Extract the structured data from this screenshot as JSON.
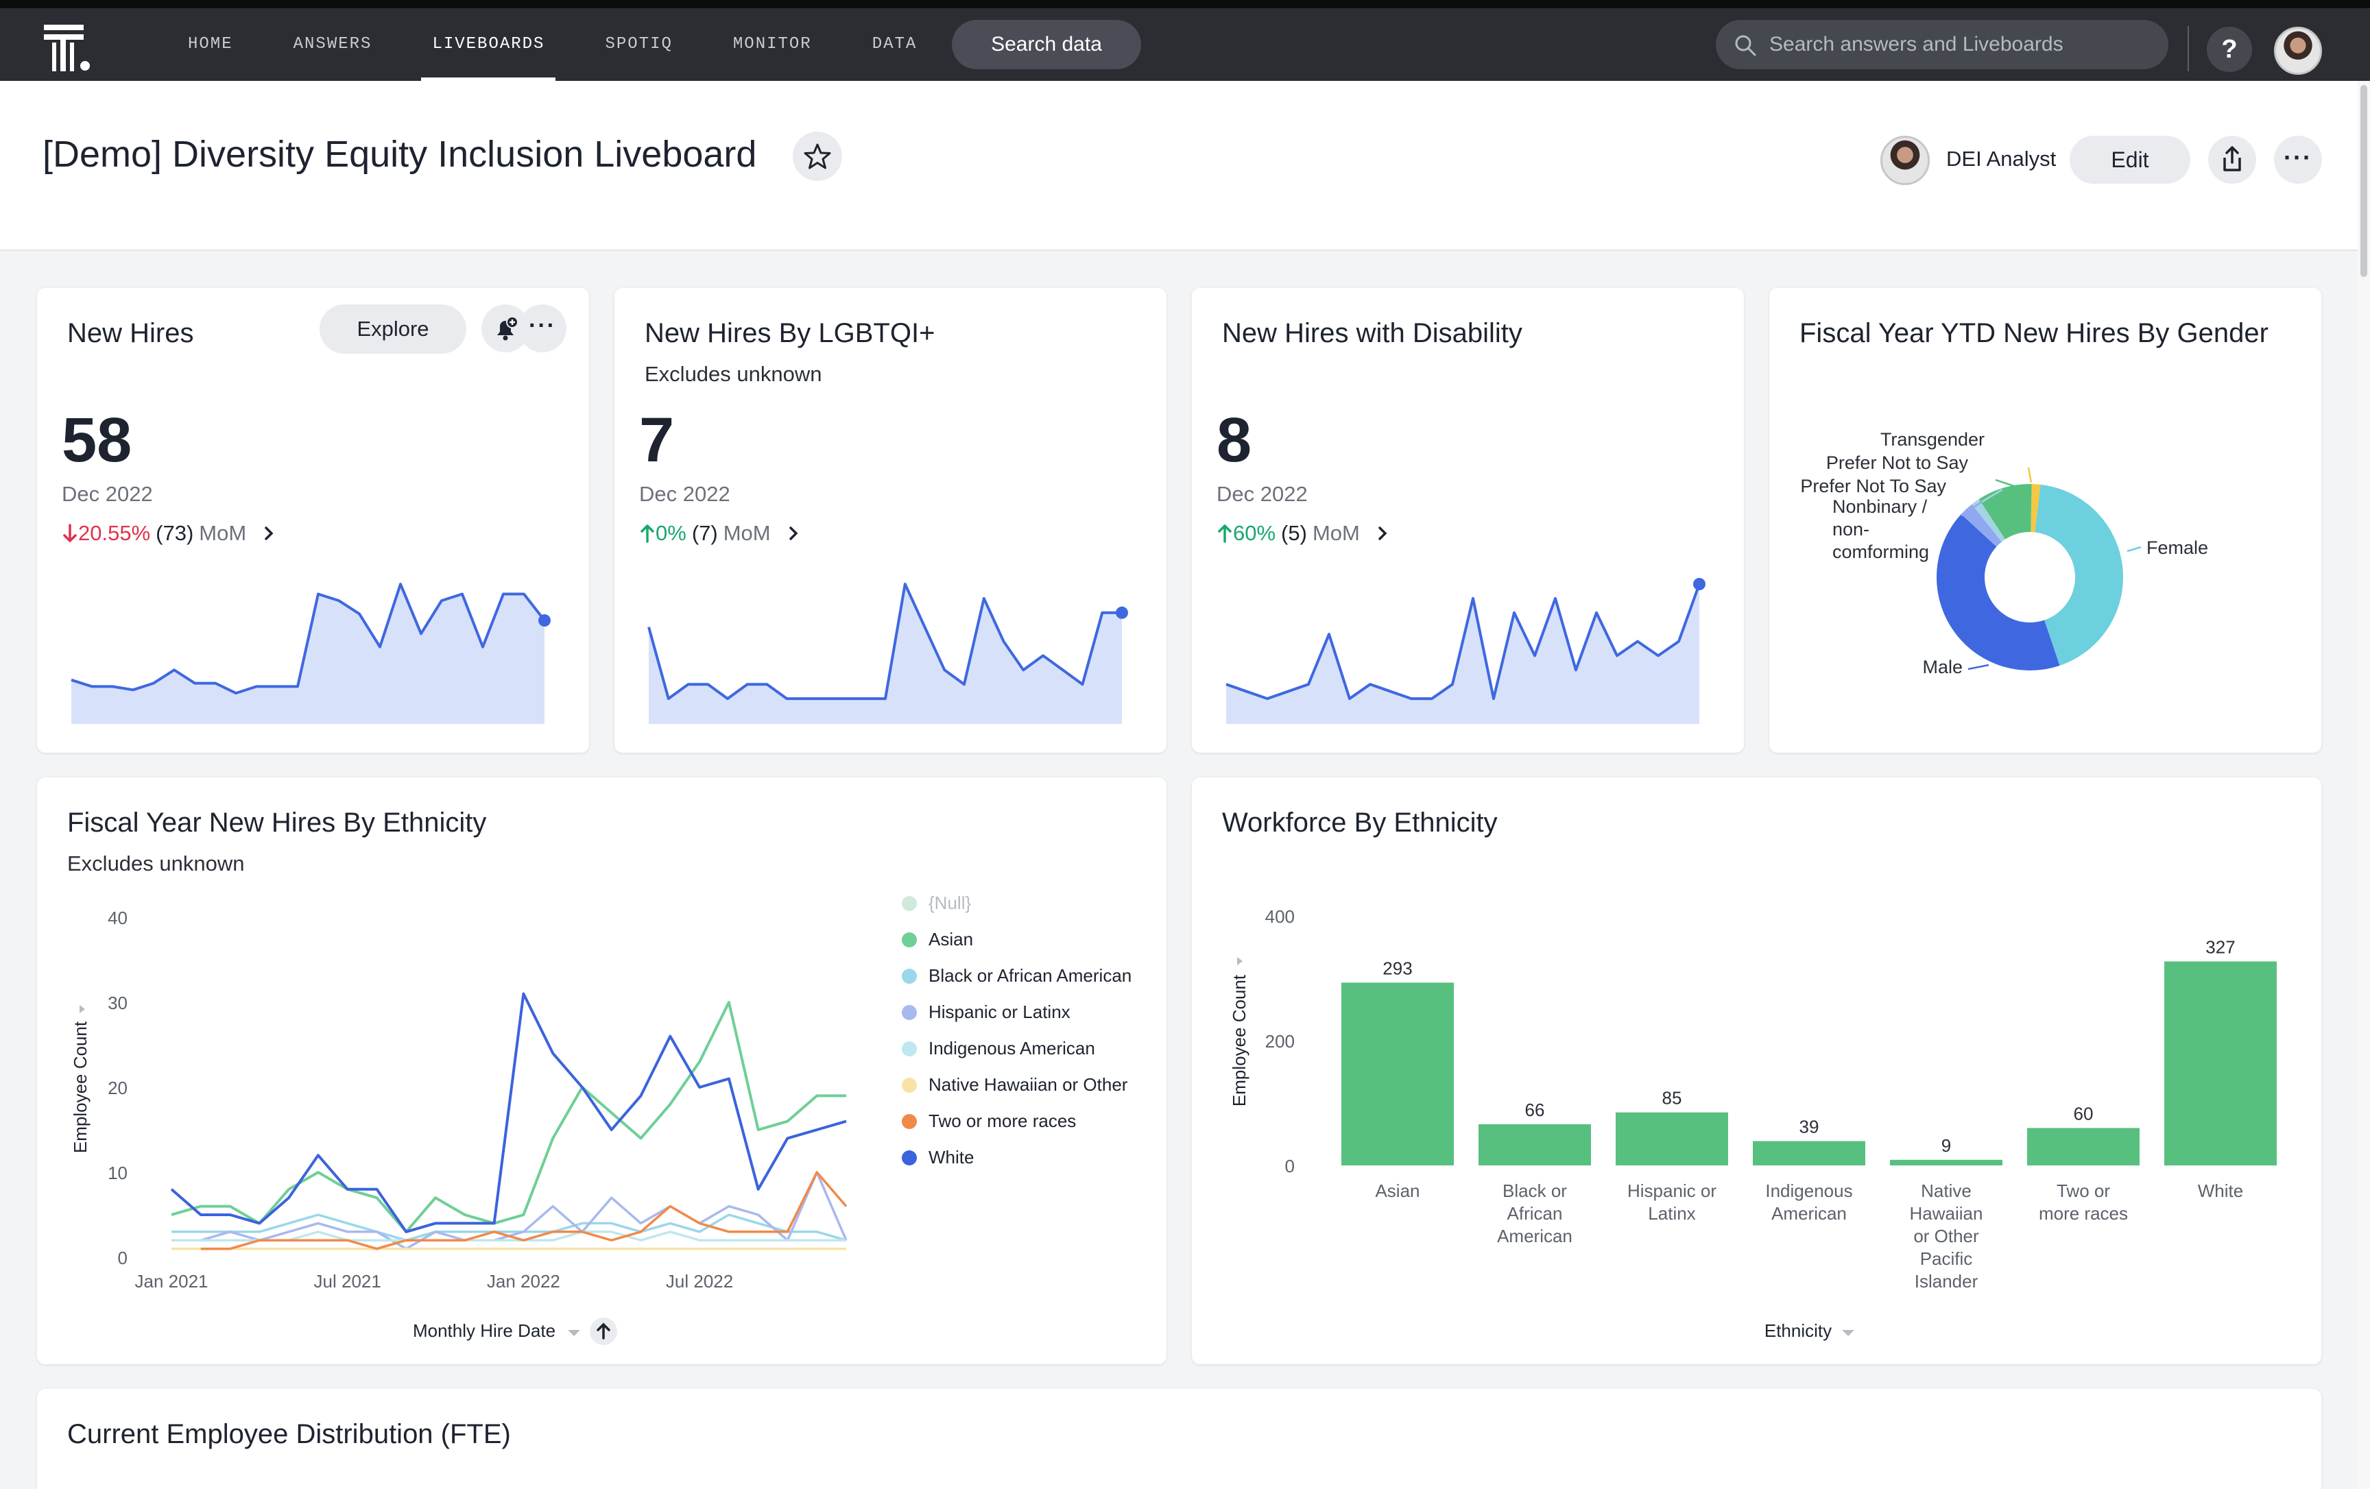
{
  "nav": {
    "items": [
      "HOME",
      "ANSWERS",
      "LIVEBOARDS",
      "SPOTIQ",
      "MONITOR",
      "DATA"
    ],
    "active": "LIVEBOARDS",
    "search_data_label": "Search data",
    "search_placeholder": "Search answers and Liveboards",
    "help_label": "?"
  },
  "header": {
    "title": "[Demo] Diversity Equity Inclusion Liveboard",
    "owner": "DEI Analyst",
    "edit_label": "Edit",
    "more_label": "···"
  },
  "kpi_cards": [
    {
      "title": "New Hires",
      "subtitle": "",
      "value": "58",
      "date": "Dec 2022",
      "change_pct": "20.55%",
      "change_abs": "(73)",
      "change_dir": "down",
      "mom_label": "MoM",
      "explore_label": "Explore",
      "more_label": "···",
      "trend": [
        10,
        8,
        8,
        7,
        9,
        13,
        9,
        9,
        6,
        8,
        8,
        8,
        36,
        34,
        30,
        20,
        39,
        24,
        34,
        36,
        20,
        36,
        36,
        28
      ]
    },
    {
      "title": "New Hires By LGBTQI+",
      "subtitle": "Excludes unknown",
      "value": "7",
      "date": "Dec 2022",
      "change_pct": "0%",
      "change_abs": "(7)",
      "change_dir": "up",
      "mom_label": "MoM",
      "trend": [
        6,
        1,
        2,
        2,
        1,
        2,
        2,
        1,
        1,
        1,
        1,
        1,
        1,
        9,
        6,
        3,
        2,
        8,
        5,
        3,
        4,
        3,
        2,
        7,
        7
      ]
    },
    {
      "title": "New Hires with Disability",
      "subtitle": "",
      "value": "8",
      "date": "Dec 2022",
      "change_pct": "60%",
      "change_abs": "(5)",
      "change_dir": "up",
      "mom_label": "MoM",
      "trend": [
        2,
        1.5,
        1,
        1.5,
        2,
        5.5,
        1,
        2,
        1.5,
        1,
        1,
        2,
        8,
        1,
        7,
        4,
        8,
        3,
        7,
        4,
        5,
        4,
        5,
        9
      ]
    }
  ],
  "gender_card": {
    "title": "Fiscal Year YTD New Hires By Gender",
    "chart_data": {
      "type": "pie",
      "labels": [
        "Female",
        "Male",
        "Nonbinary / non-comforming",
        "Prefer Not To Say",
        "Prefer Not to Say",
        "Transgender"
      ],
      "values": [
        43,
        42,
        2.5,
        1.5,
        9.5,
        1.5
      ],
      "colors": [
        "#6cd0de",
        "#3f68e0",
        "#90a8f0",
        "#a3d4e4",
        "#57c07f",
        "#f5c842"
      ]
    }
  },
  "ethnicity_line_card": {
    "title": "Fiscal Year New Hires By Ethnicity",
    "subtitle": "Excludes unknown",
    "chart_data": {
      "type": "line",
      "x": [
        "Jan 2021",
        "Feb 2021",
        "Mar 2021",
        "Apr 2021",
        "May 2021",
        "Jun 2021",
        "Jul 2021",
        "Aug 2021",
        "Sep 2021",
        "Oct 2021",
        "Nov 2021",
        "Dec 2021",
        "Jan 2022",
        "Feb 2022",
        "Mar 2022",
        "Apr 2022",
        "May 2022",
        "Jun 2022",
        "Jul 2022",
        "Aug 2022",
        "Sep 2022",
        "Oct 2022",
        "Nov 2022",
        "Dec 2022"
      ],
      "xticks": [
        "Jan 2021",
        "Jul 2021",
        "Jan 2022",
        "Jul 2022"
      ],
      "xlabel": "Monthly Hire Date",
      "ylabel": "Employee Count",
      "ylim": [
        0,
        40
      ],
      "yticks": [
        0,
        10,
        20,
        30,
        40
      ],
      "series": [
        {
          "name": "{Null}",
          "color": "#cfe9dd",
          "values": [
            null,
            null,
            null,
            null,
            null,
            null,
            null,
            null,
            null,
            null,
            null,
            null,
            null,
            null,
            null,
            null,
            null,
            null,
            null,
            null,
            null,
            null,
            null,
            null
          ]
        },
        {
          "name": "Asian",
          "color": "#6fcf97",
          "values": [
            5,
            6,
            6,
            4,
            8,
            10,
            8,
            7,
            3,
            7,
            5,
            4,
            5,
            14,
            20,
            17,
            14,
            18,
            23,
            30,
            15,
            16,
            19,
            19
          ]
        },
        {
          "name": "Black or African American",
          "color": "#9ad7ea",
          "values": [
            3,
            3,
            3,
            3,
            4,
            5,
            4,
            3,
            2,
            3,
            3,
            3,
            3,
            3,
            4,
            4,
            3,
            4,
            3,
            5,
            4,
            3,
            3,
            2
          ]
        },
        {
          "name": "Hispanic or Latinx",
          "color": "#a9b8ee",
          "values": [
            2,
            2,
            3,
            2,
            3,
            4,
            3,
            3,
            1,
            3,
            2,
            2,
            3,
            6,
            3,
            7,
            4,
            6,
            4,
            6,
            5,
            2,
            10,
            2
          ]
        },
        {
          "name": "Indigenous American",
          "color": "#bfe7ee",
          "values": [
            2,
            2,
            2,
            2,
            2,
            3,
            2,
            2,
            2,
            2,
            2,
            2,
            2,
            2,
            3,
            3,
            2,
            3,
            2,
            2,
            2,
            2,
            2,
            2
          ]
        },
        {
          "name": "Native Hawaiian or Other",
          "color": "#f7e3a6",
          "values": [
            1,
            1,
            1,
            1,
            1,
            1,
            1,
            1,
            1,
            1,
            1,
            1,
            1,
            1,
            1,
            1,
            1,
            1,
            1,
            1,
            1,
            1,
            1,
            1
          ]
        },
        {
          "name": "Two or more races",
          "color": "#f08a4b",
          "values": [
            null,
            1,
            1,
            2,
            2,
            2,
            2,
            1,
            2,
            2,
            2,
            3,
            2,
            3,
            3,
            2,
            3,
            6,
            4,
            3,
            3,
            3,
            10,
            6
          ]
        },
        {
          "name": "White",
          "color": "#3b63dc",
          "values": [
            8,
            5,
            5,
            4,
            7,
            12,
            8,
            8,
            3,
            4,
            4,
            4,
            31,
            24,
            20,
            15,
            19,
            26,
            20,
            21,
            8,
            14,
            15,
            16
          ]
        }
      ]
    }
  },
  "workforce_card": {
    "title": "Workforce By Ethnicity",
    "chart_data": {
      "type": "bar",
      "categories": [
        "Asian",
        "Black or African American",
        "Hispanic or Latinx",
        "Indigenous American",
        "Native Hawaiian or Other Pacific Islander",
        "Two or more races",
        "White"
      ],
      "category_lines": [
        [
          "Asian"
        ],
        [
          "Black or",
          "African",
          "American"
        ],
        [
          "Hispanic or",
          "Latinx"
        ],
        [
          "Indigenous",
          "American"
        ],
        [
          "Native",
          "Hawaiian",
          "or Other",
          "Pacific",
          "Islander"
        ],
        [
          "Two or",
          "more races"
        ],
        [
          "White"
        ]
      ],
      "values": [
        293,
        66,
        85,
        39,
        9,
        60,
        327
      ],
      "value_labels": [
        "293",
        "66",
        "85",
        "39",
        "9",
        "60",
        "327"
      ],
      "xlabel": "Ethnicity",
      "ylabel": "Employee Count",
      "ylim": [
        0,
        400
      ],
      "yticks": [
        0,
        200,
        400
      ],
      "color": "#57c07f"
    }
  },
  "distribution_card": {
    "title": "Current Employee Distribution (FTE)"
  }
}
